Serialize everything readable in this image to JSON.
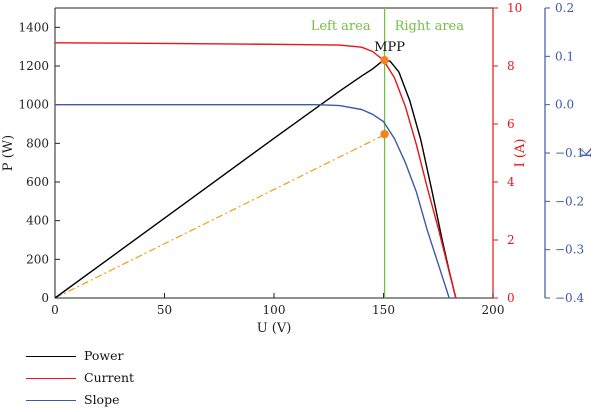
{
  "chart_data": {
    "type": "line",
    "xlabel": "U (V)",
    "xlim": [
      0,
      200
    ],
    "xticks": [
      0,
      50,
      100,
      150,
      200
    ],
    "axes": {
      "left": {
        "label": "P (W)",
        "lim": [
          0,
          1500
        ],
        "ticks": [
          0,
          200,
          400,
          600,
          800,
          1000,
          1200,
          1400
        ],
        "color": "#222222"
      },
      "right1": {
        "label": "I (A)",
        "lim": [
          0,
          10
        ],
        "ticks": [
          0,
          2,
          4,
          6,
          8,
          10
        ],
        "color": "#e8141a"
      },
      "right2": {
        "label": "K",
        "lim": [
          -0.4,
          0.2
        ],
        "ticks": [
          "0.2",
          "0.1",
          "0.0",
          "−0.1",
          "−0.2",
          "−0.3",
          "−0.4"
        ],
        "tick_values": [
          0.2,
          0.1,
          0.0,
          -0.1,
          -0.2,
          -0.3,
          -0.4
        ],
        "color": "#3a5ba8"
      }
    },
    "series": [
      {
        "name": "Power",
        "axis": "left",
        "color": "#000000",
        "x": [
          0,
          50,
          100,
          130,
          140,
          145,
          150,
          153,
          157,
          162,
          167,
          172,
          177,
          180,
          183
        ],
        "y": [
          0,
          413,
          826,
          1070,
          1148,
          1185,
          1230,
          1225,
          1170,
          1020,
          820,
          560,
          290,
          140,
          0
        ]
      },
      {
        "name": "Current",
        "axis": "right1",
        "color": "#e8141a",
        "x": [
          0,
          50,
          100,
          130,
          140,
          145,
          150,
          155,
          160,
          165,
          170,
          175,
          180,
          183
        ],
        "y": [
          8.8,
          8.78,
          8.75,
          8.72,
          8.65,
          8.5,
          8.2,
          7.6,
          6.6,
          5.3,
          3.8,
          2.4,
          0.9,
          0
        ]
      },
      {
        "name": "Slope",
        "axis": "right2",
        "color": "#3a5ba8",
        "x": [
          0,
          50,
          100,
          120,
          130,
          140,
          145,
          150,
          155,
          160,
          165,
          170,
          175,
          180
        ],
        "y": [
          0.0,
          0.0,
          0.0,
          0.0,
          -0.002,
          -0.01,
          -0.02,
          -0.035,
          -0.07,
          -0.12,
          -0.18,
          -0.26,
          -0.33,
          -0.4
        ]
      }
    ],
    "reference_line": {
      "x": 150.5,
      "color": "#74c043"
    },
    "dash_line": {
      "x": [
        0,
        151
      ],
      "y_axis": "right1",
      "y": [
        0,
        5.65
      ],
      "color": "#f39c12"
    },
    "markers": [
      {
        "x": 150.5,
        "y": 8.2,
        "axis": "right1",
        "color": "#f5811f"
      },
      {
        "x": 150.5,
        "y": 5.65,
        "axis": "right1",
        "color": "#f5811f"
      }
    ],
    "annotations": [
      {
        "text": "Left area",
        "color": "#74c043"
      },
      {
        "text": "Right area",
        "color": "#74c043"
      },
      {
        "text": "MPP",
        "color": "#111111"
      }
    ],
    "legend": {
      "placement": "bottom-left",
      "items": [
        {
          "label": "Power",
          "color": "#000000"
        },
        {
          "label": "Current",
          "color": "#e8141a"
        },
        {
          "label": "Slope",
          "color": "#3a5ba8"
        }
      ]
    }
  }
}
